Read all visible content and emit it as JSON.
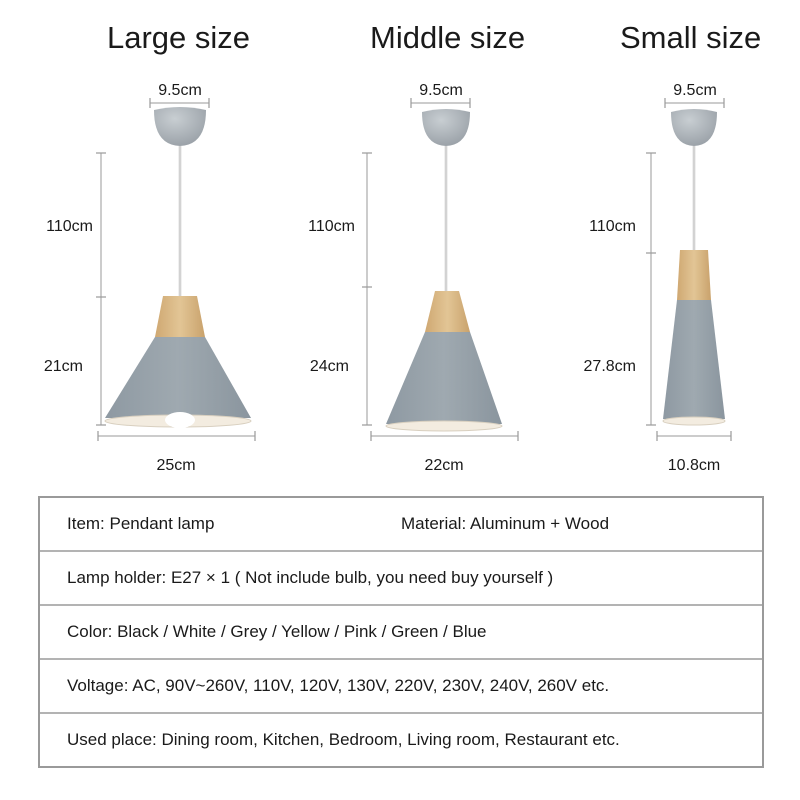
{
  "titles": {
    "large": "Large size",
    "middle": "Middle size",
    "small": "Small size"
  },
  "dimensions": {
    "large": {
      "canopy": "9.5cm",
      "cord": "110cm",
      "shade_height": "21cm",
      "width": "25cm"
    },
    "middle": {
      "canopy": "9.5cm",
      "cord": "110cm",
      "shade_height": "24cm",
      "width": "22cm"
    },
    "small": {
      "canopy": "9.5cm",
      "cord": "110cm",
      "shade_height": "27.8cm",
      "width": "10.8cm"
    }
  },
  "colors": {
    "shade": "#95a0a8",
    "wood": "#d9b885",
    "inner": "#f3ece0",
    "canopy": "#aeb5bb"
  },
  "specs": {
    "item": "Item: Pendant lamp",
    "material": "Material: Aluminum + Wood",
    "lamp_holder": "Lamp holder: E27 × 1 ( Not include bulb, you need buy yourself )",
    "color": "Color: Black / White / Grey / Yellow / Pink / Green / Blue",
    "voltage": "Voltage: AC, 90V~260V, 110V, 120V, 130V, 220V, 230V, 240V, 260V etc.",
    "used_place": "Used place: Dining room, Kitchen, Bedroom, Living room, Restaurant etc."
  }
}
